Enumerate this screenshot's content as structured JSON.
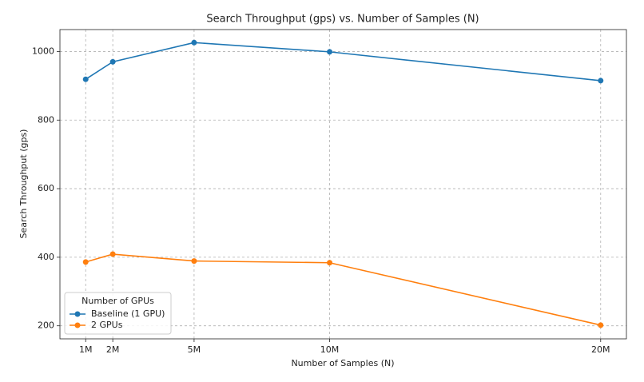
{
  "chart_data": {
    "type": "line",
    "title": "Search Throughput (gps) vs. Number of Samples (N)",
    "x_label": "Number of Samples (N)",
    "y_label": "Search Throughput (gps)",
    "x": [
      1000000,
      2000000,
      5000000,
      10000000,
      20000000
    ],
    "series": [
      {
        "name": "Baseline (1 GPU)",
        "color": "#1f77b4",
        "values": [
          919,
          970,
          1026,
          999,
          915
        ]
      },
      {
        "name": "2 GPUs",
        "color": "#ff7f0e",
        "values": [
          386,
          409,
          389,
          384,
          202
        ]
      }
    ],
    "xlim": [
      50000,
      20950000
    ],
    "xticks": [
      {
        "value": 1000000,
        "label": "1M"
      },
      {
        "value": 2000000,
        "label": "2M"
      },
      {
        "value": 5000000,
        "label": "5M"
      },
      {
        "value": 10000000,
        "label": "10M"
      },
      {
        "value": 20000000,
        "label": "20M"
      }
    ],
    "ylim": [
      162,
      1064
    ],
    "yticks": [
      200,
      400,
      600,
      800,
      1000
    ],
    "grid": true,
    "legend_title": "Number of GPUs",
    "legend_position": "lower left"
  }
}
